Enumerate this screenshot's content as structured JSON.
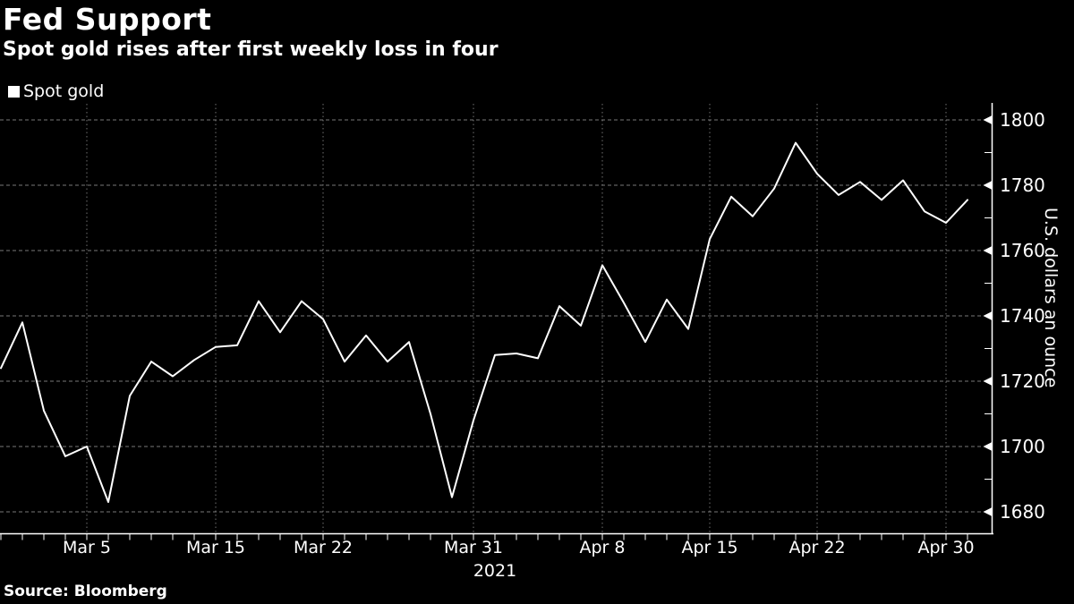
{
  "header": {
    "title": "Fed Support",
    "subtitle": "Spot gold rises after first weekly loss in four"
  },
  "legend": {
    "position": "top-left",
    "items": [
      {
        "label": "Spot gold",
        "marker_color": "#ffffff"
      }
    ]
  },
  "source": "Source: Bloomberg",
  "colors": {
    "background": "#000000",
    "text": "#ffffff",
    "line": "#ffffff",
    "grid_horizontal": "#a0a0a0",
    "grid_vertical": "#8f8f8f",
    "axis": "#ffffff"
  },
  "chart_data": {
    "type": "line",
    "title": "Fed Support",
    "subtitle": "Spot gold rises after first weekly loss in four",
    "ylabel": "U.S. dollars an ounce",
    "xlabel": "",
    "year_label": "2021",
    "ylim": [
      1680,
      1800
    ],
    "yticks": [
      1800,
      1780,
      1760,
      1740,
      1720,
      1700,
      1680
    ],
    "ytick_minor": [
      1790,
      1770,
      1750,
      1730,
      1710,
      1690
    ],
    "grid": "horizontal dashed at yticks, vertical dotted at labeled dates",
    "legend_position": "top-left",
    "xticks": [
      {
        "label": "Mar 5",
        "index": 4
      },
      {
        "label": "Mar 15",
        "index": 10
      },
      {
        "label": "Mar 22",
        "index": 15
      },
      {
        "label": "Mar 31",
        "index": 22
      },
      {
        "label": "Apr 8",
        "index": 28
      },
      {
        "label": "Apr 15",
        "index": 33
      },
      {
        "label": "Apr 22",
        "index": 38
      },
      {
        "label": "Apr 30",
        "index": 44
      }
    ],
    "series": [
      {
        "name": "Spot gold",
        "color": "#ffffff",
        "x": [
          "Mar 1",
          "Mar 2",
          "Mar 3",
          "Mar 4",
          "Mar 5",
          "Mar 8",
          "Mar 9",
          "Mar 10",
          "Mar 11",
          "Mar 12",
          "Mar 15",
          "Mar 16",
          "Mar 17",
          "Mar 18",
          "Mar 19",
          "Mar 22",
          "Mar 23",
          "Mar 24",
          "Mar 25",
          "Mar 26",
          "Mar 29",
          "Mar 30",
          "Mar 31",
          "Apr 1",
          "Apr 2",
          "Apr 5",
          "Apr 6",
          "Apr 7",
          "Apr 8",
          "Apr 9",
          "Apr 12",
          "Apr 13",
          "Apr 14",
          "Apr 15",
          "Apr 16",
          "Apr 19",
          "Apr 20",
          "Apr 21",
          "Apr 22",
          "Apr 23",
          "Apr 26",
          "Apr 27",
          "Apr 28",
          "Apr 29",
          "Apr 30",
          "May 3"
        ],
        "values": [
          1724,
          1738,
          1711,
          1697,
          1700,
          1683,
          1715.5,
          1726,
          1721.5,
          1726.5,
          1730.5,
          1731,
          1744.5,
          1735,
          1744.5,
          1739,
          1726,
          1734,
          1726,
          1732,
          1710,
          1684.5,
          1708,
          1728,
          1728.5,
          1727,
          1743,
          1737,
          1755.5,
          1744,
          1732,
          1745,
          1736,
          1763.5,
          1776.5,
          1770.5,
          1779,
          1793,
          1783.5,
          1777,
          1781,
          1775.5,
          1781.5,
          1772,
          1768.5,
          1775.5
        ]
      }
    ]
  }
}
